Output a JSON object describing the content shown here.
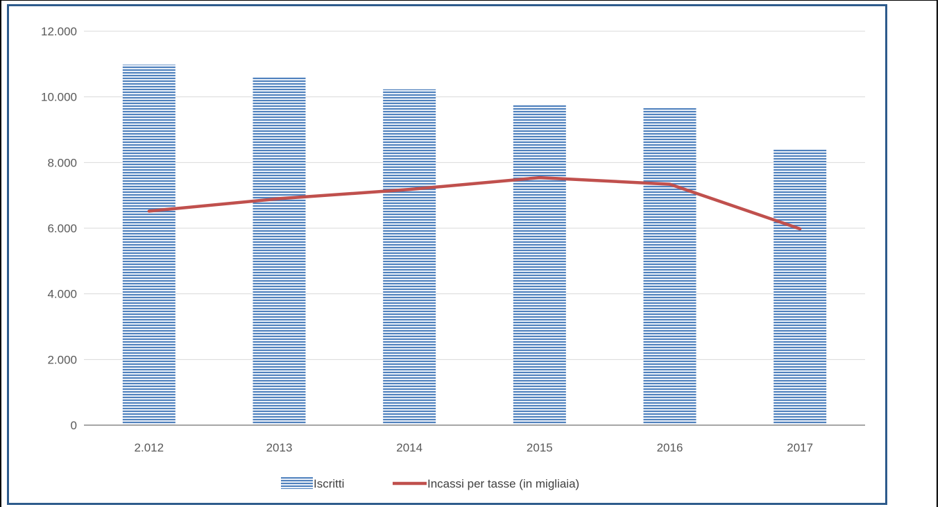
{
  "chart_data": {
    "type": "bar",
    "categories": [
      "2.012",
      "2013",
      "2014",
      "2015",
      "2016",
      "2017"
    ],
    "series": [
      {
        "name": "Iscritti",
        "type": "bar",
        "color": "#4f81bd",
        "values": [
          10980,
          10600,
          10230,
          9760,
          9660,
          8400
        ]
      },
      {
        "name": "Incassi per tasse (in migliaia)",
        "type": "line",
        "color": "#c0504d",
        "values": [
          6520,
          6900,
          7180,
          7540,
          7340,
          5980
        ]
      }
    ],
    "y_ticks": [
      "0",
      "2.000",
      "4.000",
      "6.000",
      "8.000",
      "10.000",
      "12.000"
    ],
    "ylim": [
      0,
      12000
    ],
    "grid": true,
    "legend_position": "bottom"
  }
}
